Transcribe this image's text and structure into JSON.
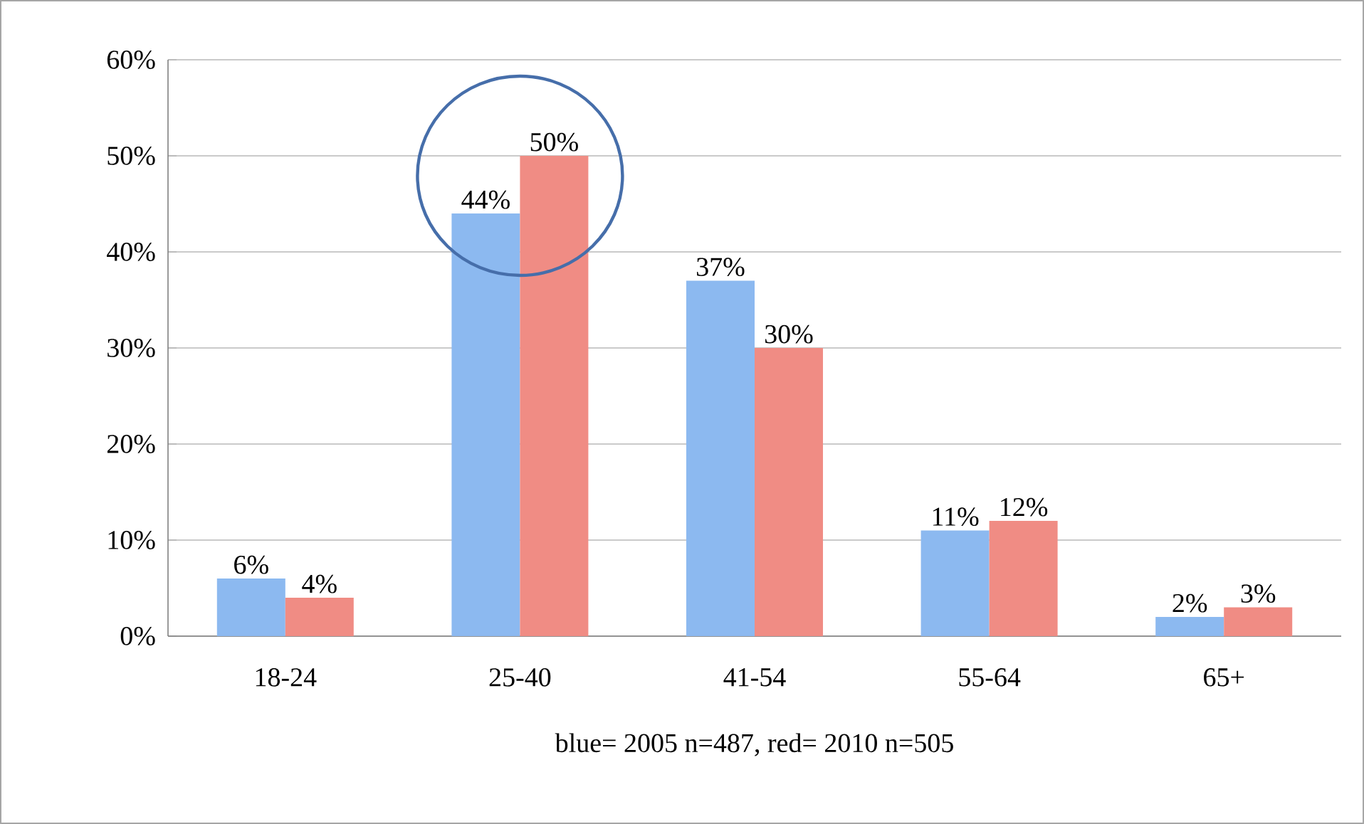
{
  "chart_data": {
    "type": "bar",
    "xlabel": "blue= 2005 n=487, red= 2010 n=505",
    "categories": [
      "18-24",
      "25-40",
      "41-54",
      "55-64",
      "65+"
    ],
    "series": [
      {
        "color": "#8cb9f0",
        "values": [
          6,
          44,
          37,
          11,
          2
        ],
        "value_labels": [
          "6%",
          "44%",
          "37%",
          "11%",
          "2%"
        ]
      },
      {
        "color": "#f08c84",
        "values": [
          4,
          50,
          30,
          12,
          3
        ],
        "value_labels": [
          "4%",
          "50%",
          "30%",
          "12%",
          "3%"
        ]
      }
    ],
    "ylim": [
      0,
      60
    ],
    "yticks": [
      {
        "value": 0,
        "label": "0%"
      },
      {
        "value": 10,
        "label": "10%"
      },
      {
        "value": 20,
        "label": "20%"
      },
      {
        "value": 30,
        "label": "30%"
      },
      {
        "value": 40,
        "label": "40%"
      },
      {
        "value": 50,
        "label": "50%"
      },
      {
        "value": 60,
        "label": "60%"
      }
    ],
    "grid": "y"
  }
}
